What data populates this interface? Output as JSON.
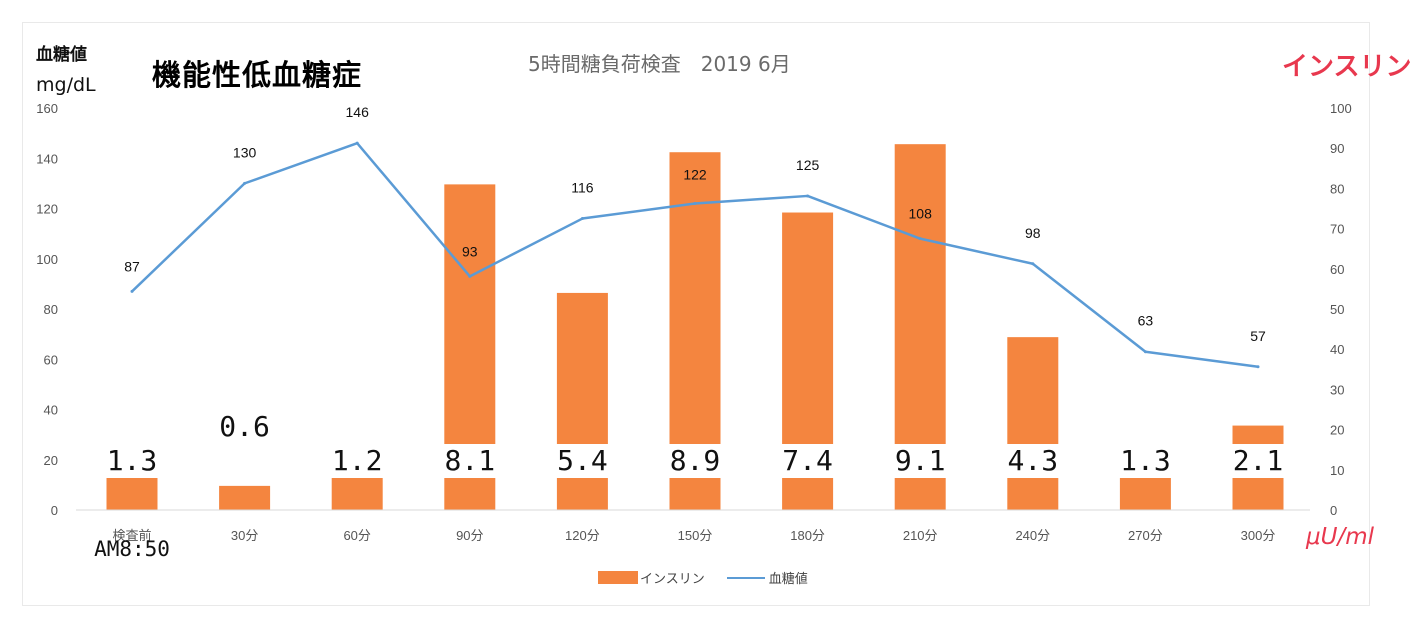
{
  "header": {
    "y_unit_line1": "血糖値",
    "y_unit_line2": "mg/dL",
    "title_main": "機能性低血糖症",
    "title_sub": "5時間糖負荷検査　2019 6月",
    "insulin_heading": "インスリン",
    "insulin_unit": "μU/ml"
  },
  "legend": {
    "insulin": "インスリン",
    "glucose": "血糖値"
  },
  "chart_data": {
    "type": "bar",
    "categories": [
      "検査前 AM8:50",
      "30分",
      "60分",
      "90分",
      "120分",
      "150分",
      "180分",
      "210分",
      "240分",
      "270分",
      "300分"
    ],
    "category_labels": [
      "検査前",
      "30分",
      "60分",
      "90分",
      "120分",
      "150分",
      "180分",
      "210分",
      "240分",
      "270分",
      "300分"
    ],
    "first_category_note": "AM8:50",
    "series": [
      {
        "name": "インスリン",
        "type": "bar",
        "axis": "right",
        "color": "#f4853f",
        "values": [
          1.3,
          0.6,
          1.2,
          8.1,
          5.4,
          8.9,
          7.4,
          9.1,
          4.3,
          1.3,
          2.1
        ],
        "data_labels": [
          "1.3",
          "0.6",
          "1.2",
          "8.1",
          "5.4",
          "8.9",
          "7.4",
          "9.1",
          "4.3",
          "1.3",
          "2.1"
        ]
      },
      {
        "name": "血糖値",
        "type": "line",
        "axis": "left",
        "color": "#5b9bd5",
        "values": [
          87,
          130,
          146,
          93,
          116,
          122,
          125,
          108,
          98,
          63,
          57
        ],
        "data_labels": [
          "87",
          "130",
          "146",
          "93",
          "116",
          "122",
          "125",
          "108",
          "98",
          "63",
          "57"
        ]
      }
    ],
    "y_left": {
      "ylim": [
        0,
        160
      ],
      "ticks": [
        0,
        20,
        40,
        60,
        80,
        100,
        120,
        140,
        160
      ]
    },
    "y_right": {
      "ylim": [
        0,
        100
      ],
      "ticks": [
        0,
        10,
        20,
        30,
        40,
        50,
        60,
        70,
        80,
        90,
        100
      ]
    },
    "grid": false,
    "legend_position": "bottom"
  }
}
